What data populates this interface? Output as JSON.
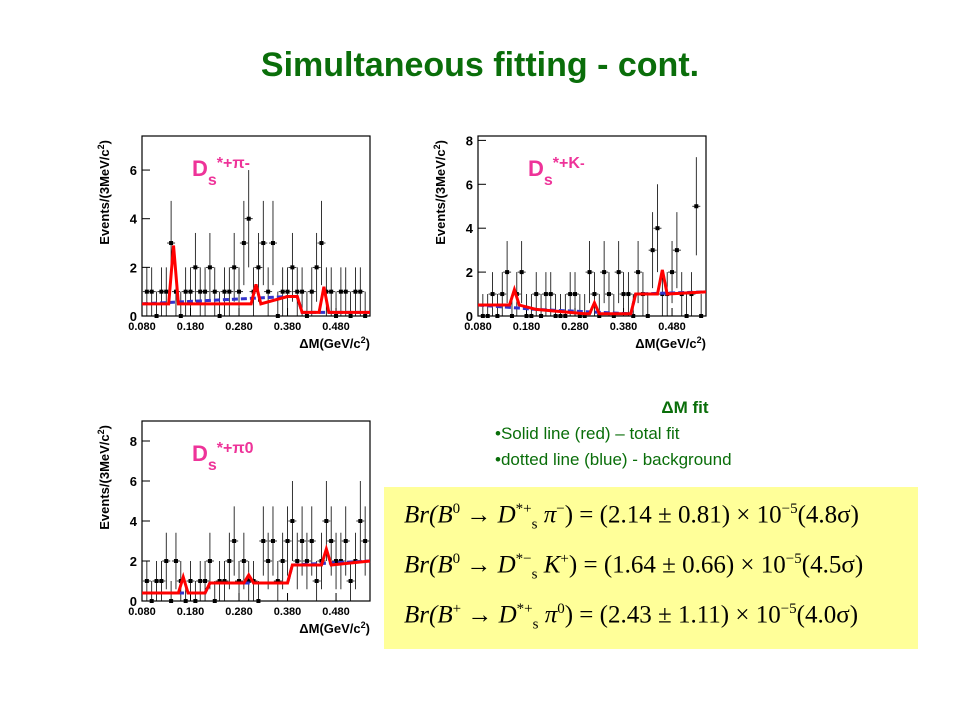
{
  "title": "Simultaneous fitting - cont.",
  "colors": {
    "title": "#0a6e0a",
    "fit_total": "#ff0000",
    "fit_background": "#3333cc",
    "label_pink": "#ee3399",
    "formula_box": "#ffff99"
  },
  "notes": {
    "head": "ΔM fit",
    "solid": "•Solid line (red) – total fit",
    "dotted": "•dotted line (blue) - background"
  },
  "formulas": [
    {
      "lhs": "Br(B",
      "b_sup": "0",
      "arrow": "→",
      "d": "D",
      "d_sup": "*+",
      "d_sub": "s",
      "meson": "π",
      "meson_sup": "−",
      "value": ") = (2.14 ± 0.81) × 10",
      "exp": "−5",
      "sig": "(4.8σ)"
    },
    {
      "lhs": "Br(B",
      "b_sup": "0",
      "arrow": "→",
      "d": "D",
      "d_sup": "*−",
      "d_sub": "s",
      "meson": "K",
      "meson_sup": "+",
      "value": ") = (1.64 ± 0.66) × 10",
      "exp": "−5",
      "sig": "(4.5σ)"
    },
    {
      "lhs": "Br(B",
      "b_sup": "+",
      "arrow": "→",
      "d": "D",
      "d_sup": "*+",
      "d_sub": "s",
      "meson": "π",
      "meson_sup": "0",
      "value": ") = (2.43 ± 1.11) × 10",
      "exp": "−5",
      "sig": "(4.0σ)"
    }
  ],
  "chart_data": [
    {
      "type": "scatter",
      "label": "D",
      "label_sub": "s",
      "label_sup": "*+π",
      "label_sup2": "-",
      "xlabel": "ΔM(GeV/c",
      "xlabel_sup": "2",
      "xlabel_end": ")",
      "ylabel": "Events/(3MeV/c",
      "ylabel_sup": "2",
      "ylabel_end": ")",
      "xlim": [
        0.08,
        0.55
      ],
      "ylim": [
        0,
        7.4
      ],
      "xticks": [
        "0.080",
        "0.180",
        "0.280",
        "0.380",
        "0.480"
      ],
      "yticks": [
        "0",
        "2",
        "4",
        "6"
      ],
      "data": {
        "x": [
          0.09,
          0.1,
          0.11,
          0.12,
          0.13,
          0.14,
          0.15,
          0.16,
          0.17,
          0.18,
          0.19,
          0.2,
          0.21,
          0.22,
          0.23,
          0.24,
          0.25,
          0.26,
          0.27,
          0.28,
          0.29,
          0.3,
          0.31,
          0.32,
          0.33,
          0.34,
          0.35,
          0.36,
          0.37,
          0.38,
          0.39,
          0.4,
          0.41,
          0.42,
          0.43,
          0.44,
          0.45,
          0.46,
          0.47,
          0.48,
          0.49,
          0.5,
          0.51,
          0.52,
          0.53,
          0.54
        ],
        "y": [
          1,
          1,
          0,
          1,
          1,
          3,
          1,
          0,
          1,
          1,
          2,
          1,
          1,
          2,
          1,
          0,
          1,
          1,
          2,
          1,
          3,
          4,
          1,
          2,
          3,
          1,
          3,
          0,
          1,
          1,
          2,
          1,
          1,
          0,
          1,
          2,
          3,
          1,
          1,
          0,
          1,
          1,
          0,
          1,
          1,
          0
        ]
      },
      "fit_total": [
        [
          0.08,
          0.5
        ],
        [
          0.135,
          0.5
        ],
        [
          0.145,
          2.9
        ],
        [
          0.155,
          0.5
        ],
        [
          0.305,
          0.5
        ],
        [
          0.315,
          1.3
        ],
        [
          0.325,
          0.5
        ],
        [
          0.38,
          0.8
        ],
        [
          0.4,
          0.8
        ],
        [
          0.41,
          0.15
        ],
        [
          0.445,
          0.15
        ],
        [
          0.455,
          1.2
        ],
        [
          0.465,
          0.15
        ],
        [
          0.55,
          0.15
        ]
      ],
      "fit_bg": [
        [
          0.08,
          0.5
        ],
        [
          0.38,
          0.8
        ],
        [
          0.4,
          0.8
        ],
        [
          0.41,
          0.15
        ],
        [
          0.55,
          0.15
        ]
      ]
    },
    {
      "type": "scatter",
      "label": "D",
      "label_sub": "s",
      "label_sup": "*+",
      "label_sup2": "K",
      "label_sup3": "-",
      "xlabel": "ΔM(GeV/c",
      "xlabel_sup": "2",
      "xlabel_end": ")",
      "ylabel": "Events/(3MeV/c",
      "ylabel_sup": "2",
      "ylabel_end": ")",
      "xlim": [
        0.08,
        0.55
      ],
      "ylim": [
        0,
        8.2
      ],
      "xticks": [
        "0.080",
        "0.180",
        "0.280",
        "0.380",
        "0.480"
      ],
      "yticks": [
        "0",
        "2",
        "4",
        "6",
        "8"
      ],
      "data": {
        "x": [
          0.09,
          0.1,
          0.11,
          0.12,
          0.13,
          0.14,
          0.15,
          0.16,
          0.17,
          0.18,
          0.19,
          0.2,
          0.21,
          0.22,
          0.23,
          0.24,
          0.25,
          0.26,
          0.27,
          0.28,
          0.29,
          0.3,
          0.31,
          0.32,
          0.33,
          0.34,
          0.35,
          0.36,
          0.37,
          0.38,
          0.39,
          0.4,
          0.41,
          0.42,
          0.43,
          0.44,
          0.45,
          0.46,
          0.47,
          0.48,
          0.49,
          0.5,
          0.51,
          0.52,
          0.53,
          0.54
        ],
        "y": [
          0,
          0,
          1,
          0,
          1,
          2,
          0,
          1,
          2,
          0,
          0,
          1,
          0,
          1,
          1,
          0,
          0,
          0,
          1,
          1,
          0,
          0,
          2,
          1,
          0,
          2,
          1,
          0,
          2,
          1,
          1,
          0,
          2,
          1,
          0,
          3,
          4,
          1,
          1,
          2,
          3,
          1,
          0,
          1,
          5,
          0
        ]
      },
      "fit_total": [
        [
          0.08,
          0.5
        ],
        [
          0.145,
          0.5
        ],
        [
          0.155,
          1.2
        ],
        [
          0.165,
          0.5
        ],
        [
          0.2,
          0.3
        ],
        [
          0.3,
          0.1
        ],
        [
          0.31,
          0.1
        ],
        [
          0.32,
          0.6
        ],
        [
          0.33,
          0.1
        ],
        [
          0.395,
          0.1
        ],
        [
          0.405,
          1.0
        ],
        [
          0.45,
          1.0
        ],
        [
          0.46,
          2.1
        ],
        [
          0.47,
          1.0
        ],
        [
          0.55,
          1.1
        ]
      ],
      "fit_bg": [
        [
          0.08,
          0.5
        ],
        [
          0.2,
          0.3
        ],
        [
          0.395,
          0.1
        ],
        [
          0.405,
          1.0
        ],
        [
          0.55,
          1.1
        ]
      ]
    },
    {
      "type": "scatter",
      "label": "D",
      "label_sub": "s",
      "label_sup": "*+π",
      "label_sup2": "0",
      "xlabel": "ΔM(GeV/c",
      "xlabel_sup": "2",
      "xlabel_end": ")",
      "ylabel": "Events/(3MeV/c",
      "ylabel_sup": "2",
      "ylabel_end": ")",
      "xlim": [
        0.08,
        0.55
      ],
      "ylim": [
        0,
        9.0
      ],
      "xticks": [
        "0.080",
        "0.180",
        "0.280",
        "0.380",
        "0.480"
      ],
      "yticks": [
        "0",
        "2",
        "4",
        "6",
        "8"
      ],
      "data": {
        "x": [
          0.09,
          0.1,
          0.11,
          0.12,
          0.13,
          0.14,
          0.15,
          0.16,
          0.17,
          0.18,
          0.19,
          0.2,
          0.21,
          0.22,
          0.23,
          0.24,
          0.25,
          0.26,
          0.27,
          0.28,
          0.29,
          0.3,
          0.31,
          0.32,
          0.33,
          0.34,
          0.35,
          0.36,
          0.37,
          0.38,
          0.39,
          0.4,
          0.41,
          0.42,
          0.43,
          0.44,
          0.45,
          0.46,
          0.47,
          0.48,
          0.49,
          0.5,
          0.51,
          0.52,
          0.53,
          0.54
        ],
        "y": [
          1,
          0,
          1,
          1,
          2,
          0,
          2,
          1,
          0,
          1,
          0,
          1,
          1,
          2,
          0,
          1,
          1,
          2,
          3,
          1,
          2,
          1,
          1,
          0,
          3,
          2,
          3,
          1,
          2,
          3,
          4,
          2,
          3,
          2,
          3,
          1,
          2,
          4,
          3,
          2,
          2,
          3,
          1,
          2,
          4,
          3
        ]
      },
      "fit_total": [
        [
          0.08,
          0.4
        ],
        [
          0.155,
          0.4
        ],
        [
          0.165,
          1.2
        ],
        [
          0.175,
          0.4
        ],
        [
          0.21,
          0.4
        ],
        [
          0.22,
          0.9
        ],
        [
          0.29,
          0.9
        ],
        [
          0.3,
          1.3
        ],
        [
          0.31,
          0.9
        ],
        [
          0.38,
          0.9
        ],
        [
          0.39,
          1.8
        ],
        [
          0.45,
          1.8
        ],
        [
          0.46,
          2.6
        ],
        [
          0.47,
          1.8
        ],
        [
          0.55,
          2.0
        ]
      ],
      "fit_bg": [
        [
          0.08,
          0.4
        ],
        [
          0.21,
          0.4
        ],
        [
          0.22,
          0.9
        ],
        [
          0.38,
          0.9
        ],
        [
          0.39,
          1.8
        ],
        [
          0.55,
          2.0
        ]
      ]
    }
  ]
}
